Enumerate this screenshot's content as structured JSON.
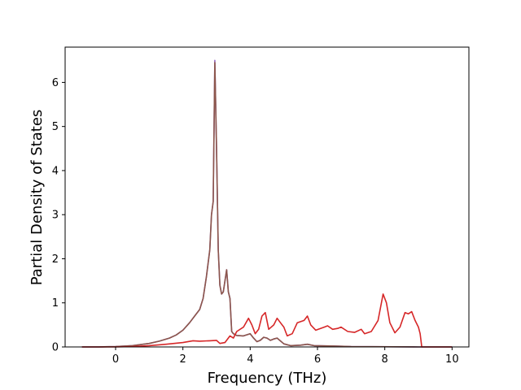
{
  "chart_data": {
    "type": "line",
    "title": "",
    "xlabel": "Frequency (THz)",
    "ylabel": "Partial Density of States",
    "xlim": [
      -1.5,
      10.5
    ],
    "ylim": [
      0,
      6.8
    ],
    "x_ticks": [
      0,
      2,
      4,
      6,
      8,
      10
    ],
    "x_tick_labels": [
      "0",
      "2",
      "4",
      "6",
      "8",
      "10"
    ],
    "y_ticks": [
      0,
      1,
      2,
      3,
      4,
      5,
      6
    ],
    "y_tick_labels": [
      "0",
      "1",
      "2",
      "3",
      "4",
      "5",
      "6"
    ],
    "grid": false,
    "legend": "none",
    "series": [
      {
        "color": "#9467bd",
        "x": [
          -1.0,
          -0.5,
          0.0,
          0.5,
          1.0,
          1.3,
          1.6,
          1.8,
          2.0,
          2.2,
          2.35,
          2.5,
          2.6,
          2.7,
          2.8,
          2.85,
          2.9,
          2.95,
          3.0,
          3.05,
          3.1,
          3.15,
          3.2,
          3.3,
          3.35,
          3.4,
          3.45,
          3.5,
          3.6,
          3.8,
          4.0,
          4.1,
          4.2,
          4.3,
          4.4,
          4.5,
          4.6,
          4.7,
          4.8,
          5.0,
          5.2,
          5.5,
          5.7,
          5.9,
          6.5,
          7.0,
          9.0,
          10.0
        ],
        "values": [
          0.0,
          0.0,
          0.01,
          0.03,
          0.08,
          0.13,
          0.2,
          0.27,
          0.38,
          0.55,
          0.7,
          0.85,
          1.1,
          1.6,
          2.2,
          3.0,
          3.3,
          6.5,
          4.5,
          2.2,
          1.4,
          1.2,
          1.25,
          1.75,
          1.25,
          1.1,
          0.35,
          0.3,
          0.26,
          0.25,
          0.3,
          0.2,
          0.12,
          0.15,
          0.22,
          0.2,
          0.15,
          0.18,
          0.2,
          0.07,
          0.03,
          0.04,
          0.06,
          0.03,
          0.02,
          0.01,
          0.0,
          0.0
        ]
      },
      {
        "color": "#8c564b",
        "x": [
          -1.0,
          -0.5,
          0.0,
          0.5,
          1.0,
          1.3,
          1.6,
          1.8,
          2.0,
          2.2,
          2.35,
          2.5,
          2.6,
          2.7,
          2.8,
          2.85,
          2.9,
          2.95,
          3.0,
          3.05,
          3.1,
          3.15,
          3.2,
          3.3,
          3.35,
          3.4,
          3.45,
          3.5,
          3.6,
          3.8,
          4.0,
          4.1,
          4.2,
          4.3,
          4.4,
          4.5,
          4.6,
          4.7,
          4.8,
          5.0,
          5.2,
          5.5,
          5.7,
          5.9,
          6.5,
          7.0,
          9.0,
          10.0
        ],
        "values": [
          0.0,
          0.0,
          0.01,
          0.03,
          0.08,
          0.13,
          0.2,
          0.27,
          0.38,
          0.55,
          0.7,
          0.85,
          1.1,
          1.6,
          2.2,
          3.0,
          3.3,
          6.45,
          4.5,
          2.2,
          1.4,
          1.2,
          1.25,
          1.75,
          1.25,
          1.1,
          0.35,
          0.3,
          0.26,
          0.25,
          0.3,
          0.2,
          0.12,
          0.15,
          0.22,
          0.2,
          0.15,
          0.18,
          0.2,
          0.07,
          0.03,
          0.04,
          0.06,
          0.03,
          0.02,
          0.01,
          0.0,
          0.0
        ]
      },
      {
        "color": "#d62728",
        "x": [
          -1.0,
          0.0,
          0.5,
          1.0,
          1.5,
          2.0,
          2.3,
          2.5,
          2.8,
          3.0,
          3.1,
          3.25,
          3.4,
          3.5,
          3.6,
          3.8,
          3.95,
          4.05,
          4.15,
          4.25,
          4.35,
          4.45,
          4.55,
          4.7,
          4.8,
          4.9,
          5.0,
          5.1,
          5.25,
          5.4,
          5.6,
          5.7,
          5.8,
          5.95,
          6.2,
          6.3,
          6.45,
          6.6,
          6.7,
          6.9,
          7.1,
          7.3,
          7.4,
          7.6,
          7.8,
          7.95,
          8.05,
          8.15,
          8.3,
          8.45,
          8.6,
          8.7,
          8.8,
          8.9,
          9.0,
          9.05,
          9.1,
          10.0
        ],
        "values": [
          0.0,
          0.0,
          0.01,
          0.03,
          0.06,
          0.1,
          0.14,
          0.13,
          0.14,
          0.15,
          0.08,
          0.1,
          0.25,
          0.2,
          0.35,
          0.45,
          0.65,
          0.5,
          0.3,
          0.4,
          0.7,
          0.78,
          0.4,
          0.5,
          0.65,
          0.55,
          0.45,
          0.25,
          0.3,
          0.55,
          0.6,
          0.7,
          0.5,
          0.38,
          0.45,
          0.48,
          0.4,
          0.42,
          0.45,
          0.35,
          0.33,
          0.4,
          0.3,
          0.35,
          0.6,
          1.2,
          1.0,
          0.55,
          0.32,
          0.45,
          0.78,
          0.75,
          0.8,
          0.6,
          0.45,
          0.3,
          0.0,
          0.0
        ]
      }
    ]
  }
}
